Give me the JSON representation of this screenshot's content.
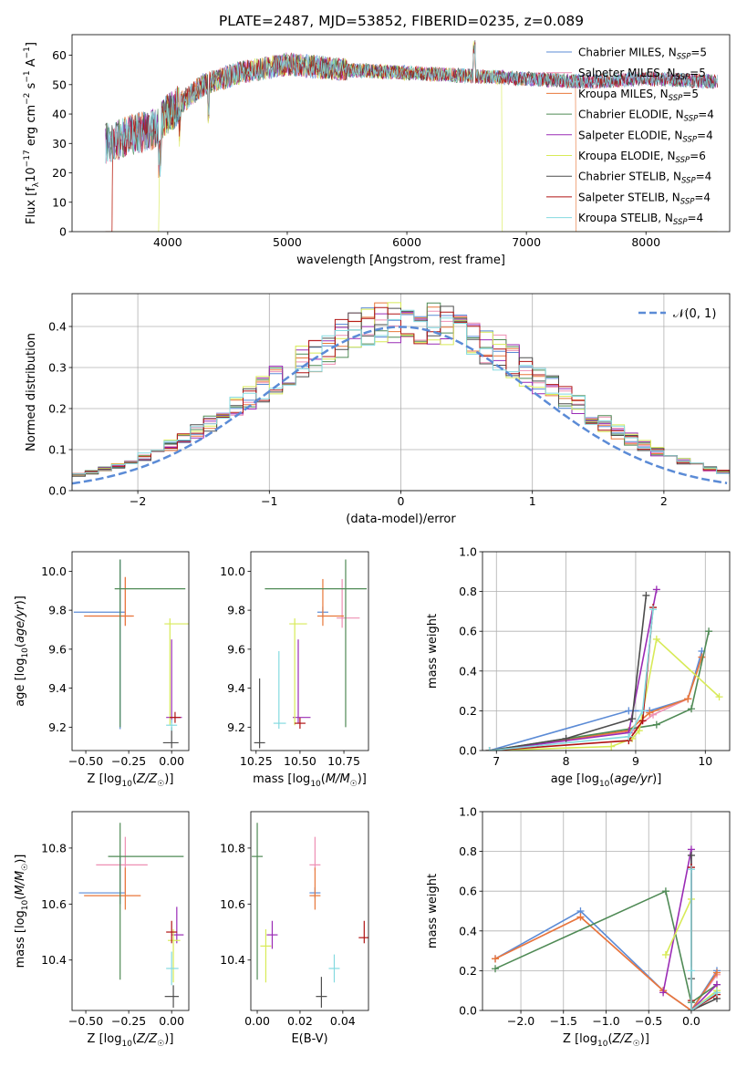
{
  "figure": {
    "title": "PLATE=2487, MJD=53852, FIBERID=0235, z=0.089"
  },
  "legend_items": [
    {
      "name": "Chabrier MILES, N_SSP=5",
      "color": "#5b8bd6"
    },
    {
      "name": "Salpeter MILES, N_SSP=5",
      "color": "#ee8fb3"
    },
    {
      "name": "Kroupa MILES, N_SSP=5",
      "color": "#e8773a"
    },
    {
      "name": "Chabrier ELODIE, N_SSP=4",
      "color": "#4f8a55"
    },
    {
      "name": "Salpeter ELODIE, N_SSP=4",
      "color": "#9a2bb5"
    },
    {
      "name": "Kroupa ELODIE, N_SSP=6",
      "color": "#d8ea57"
    },
    {
      "name": "Chabrier STELIB, N_SSP=4",
      "color": "#4d4d4d"
    },
    {
      "name": "Salpeter STELIB, N_SSP=4",
      "color": "#b01313"
    },
    {
      "name": "Kroupa STELIB, N_SSP=4",
      "color": "#84dae0"
    }
  ],
  "chart_data": [
    {
      "id": "spectrum",
      "type": "line",
      "xlabel": "wavelength [Angstrom, rest frame]",
      "ylabel": "Flux [f_λ 10^-17 erg cm^-2 s^-1 A^-1]",
      "xlim": [
        3200,
        8700
      ],
      "ylim": [
        0,
        67
      ],
      "xticks": [
        4000,
        5000,
        6000,
        7000,
        8000
      ],
      "yticks": [
        0,
        10,
        20,
        30,
        40,
        50,
        60
      ],
      "grid": false,
      "legend": "top-right",
      "continuum": {
        "x": [
          3500,
          3700,
          3900,
          4000,
          4300,
          4600,
          5000,
          5500,
          6000,
          6500,
          7000,
          7500,
          8000,
          8600
        ],
        "y": [
          30,
          33,
          35,
          40,
          50,
          54,
          57,
          55,
          54,
          53,
          52,
          51,
          52,
          51
        ]
      },
      "cutoffs": [
        {
          "series": "Kroupa MILES, N_SSP=5",
          "x": 3530
        },
        {
          "series": "Salpeter STELIB, N_SSP=4",
          "x": 3530
        },
        {
          "series": "Kroupa ELODIE, N_SSP=6",
          "x": 3920
        },
        {
          "series": "Kroupa ELODIE, N_SSP=6",
          "x": 6800
        },
        {
          "series": "Kroupa MILES, N_SSP=5",
          "x": 7420
        }
      ]
    },
    {
      "id": "residual-hist",
      "type": "histogram",
      "xlabel": "(data-model)/error",
      "ylabel": "Normed distribution",
      "xlim": [
        -2.5,
        2.5
      ],
      "ylim": [
        0,
        0.48
      ],
      "xticks": [
        -2,
        -1,
        0,
        1,
        2
      ],
      "yticks": [
        0.0,
        0.1,
        0.2,
        0.3,
        0.4
      ],
      "grid": true,
      "legend": "top-right",
      "reference_curve": {
        "label": "N(0,1)",
        "mean": 0,
        "sigma": 1
      }
    },
    {
      "id": "age-vs-Z",
      "type": "scatter",
      "xlabel": "Z [log10(Z/Z☉)]",
      "ylabel": "age [log10(age/yr)]",
      "xlim": [
        -0.58,
        0.1
      ],
      "ylim": [
        9.08,
        10.1
      ],
      "xticks": [
        -0.5,
        -0.25,
        0.0
      ],
      "xtick_labels": [
        "−0.50",
        "−0.25",
        "0.00"
      ],
      "yticks": [
        9.2,
        9.4,
        9.6,
        9.8,
        10.0
      ],
      "grid": false,
      "points": [
        {
          "series": "Chabrier MILES, N_SSP=5",
          "x": -0.3,
          "y": 9.79,
          "xerr": [
            0.27,
            0.02
          ],
          "yerr": [
            0.6,
            0.27
          ]
        },
        {
          "series": "Salpeter MILES, N_SSP=5",
          "x": -0.27,
          "y": 9.77,
          "xerr": [
            0.21,
            0.04
          ],
          "yerr": [
            0.05,
            0.2
          ]
        },
        {
          "series": "Kroupa MILES, N_SSP=5",
          "x": -0.27,
          "y": 9.77,
          "xerr": [
            0.24,
            0.05
          ],
          "yerr": [
            0.05,
            0.2
          ]
        },
        {
          "series": "Chabrier ELODIE, N_SSP=4",
          "x": -0.3,
          "y": 9.91,
          "xerr": [
            0.0,
            0.38
          ],
          "yerr": [
            0.71,
            0.15
          ]
        },
        {
          "series": "Salpeter ELODIE, N_SSP=4",
          "x": 0.0,
          "y": 9.25,
          "xerr": [
            0.0,
            0.06
          ],
          "yerr": [
            0.0,
            0.4
          ]
        },
        {
          "series": "Kroupa ELODIE, N_SSP=6",
          "x": -0.01,
          "y": 9.73,
          "xerr": [
            0.0,
            0.14
          ],
          "yerr": [
            0.52,
            0.0
          ]
        },
        {
          "series": "Chabrier STELIB, N_SSP=4",
          "x": 0.0,
          "y": 9.12,
          "xerr": [
            0.05,
            0.04
          ],
          "yerr": [
            0.0,
            0.08
          ]
        },
        {
          "series": "Salpeter STELIB, N_SSP=4",
          "x": 0.02,
          "y": 9.25,
          "xerr": [
            0.0,
            0.0
          ],
          "yerr": [
            0.0,
            0.0
          ]
        },
        {
          "series": "Kroupa STELIB, N_SSP=4",
          "x": 0.0,
          "y": 9.21,
          "xerr": [
            0.03,
            0.03
          ],
          "yerr": [
            0.0,
            0.0
          ]
        }
      ]
    },
    {
      "id": "age-vs-mass",
      "type": "scatter",
      "xlabel": "mass [log10(M/M☉)]",
      "ylabel": "",
      "xlim": [
        10.22,
        10.89
      ],
      "ylim": [
        9.08,
        10.1
      ],
      "xticks": [
        10.25,
        10.5,
        10.75
      ],
      "xtick_labels": [
        "10.25",
        "10.50",
        "10.75"
      ],
      "yticks": [
        9.2,
        9.4,
        9.6,
        9.8,
        10.0
      ],
      "grid": false,
      "points": [
        {
          "series": "Chabrier MILES, N_SSP=5",
          "x": 10.63,
          "y": 9.79,
          "xerr": [
            0.0,
            0.0
          ],
          "yerr": [
            0.0,
            0.0
          ]
        },
        {
          "series": "Salpeter MILES, N_SSP=5",
          "x": 10.74,
          "y": 9.76,
          "xerr": [
            0.01,
            0.1
          ],
          "yerr": [
            0.05,
            0.2
          ]
        },
        {
          "series": "Kroupa MILES, N_SSP=5",
          "x": 10.63,
          "y": 9.77,
          "xerr": [
            0.0,
            0.12
          ],
          "yerr": [
            0.05,
            0.19
          ]
        },
        {
          "series": "Chabrier ELODIE, N_SSP=4",
          "x": 10.76,
          "y": 9.91,
          "xerr": [
            0.46,
            0.12
          ],
          "yerr": [
            0.71,
            0.15
          ]
        },
        {
          "series": "Salpeter ELODIE, N_SSP=4",
          "x": 10.49,
          "y": 9.25,
          "xerr": [
            0.0,
            0.07
          ],
          "yerr": [
            0.0,
            0.4
          ]
        },
        {
          "series": "Kroupa ELODIE, N_SSP=6",
          "x": 10.47,
          "y": 9.73,
          "xerr": [
            0.0,
            0.07
          ],
          "yerr": [
            0.52,
            0.0
          ]
        },
        {
          "series": "Chabrier STELIB, N_SSP=4",
          "x": 10.27,
          "y": 9.12,
          "xerr": [
            0.0,
            0.03
          ],
          "yerr": [
            0.0,
            0.33
          ]
        },
        {
          "series": "Salpeter STELIB, N_SSP=4",
          "x": 10.5,
          "y": 9.22,
          "xerr": [
            0.0,
            0.0
          ],
          "yerr": [
            0.0,
            0.0
          ]
        },
        {
          "series": "Kroupa STELIB, N_SSP=4",
          "x": 10.38,
          "y": 9.22,
          "xerr": [
            0.0,
            0.04
          ],
          "yerr": [
            0.0,
            0.37
          ]
        }
      ]
    },
    {
      "id": "weight-vs-age",
      "type": "line",
      "xlabel": "age [log10(age/yr)]",
      "ylabel": "mass weight",
      "xlim": [
        6.8,
        10.35
      ],
      "ylim": [
        0.0,
        1.0
      ],
      "xticks": [
        7,
        8,
        9,
        10
      ],
      "yticks": [
        0.0,
        0.2,
        0.4,
        0.6,
        0.8,
        1.0
      ],
      "grid": true,
      "series": [
        {
          "name": "Chabrier MILES, N_SSP=5",
          "x": [
            6.9,
            8.9,
            9.2,
            9.75,
            9.95
          ],
          "y": [
            0.0,
            0.2,
            0.2,
            0.26,
            0.5
          ]
        },
        {
          "name": "Salpeter MILES, N_SSP=5",
          "x": [
            6.9,
            8.95,
            9.25,
            9.75,
            9.95
          ],
          "y": [
            0.0,
            0.1,
            0.18,
            0.26,
            0.47
          ]
        },
        {
          "name": "Kroupa MILES, N_SSP=5",
          "x": [
            6.9,
            8.9,
            9.2,
            9.75,
            9.95
          ],
          "y": [
            0.0,
            0.1,
            0.19,
            0.26,
            0.47
          ]
        },
        {
          "name": "Chabrier ELODIE, N_SSP=4",
          "x": [
            6.9,
            9.3,
            9.8,
            10.05
          ],
          "y": [
            0.0,
            0.13,
            0.21,
            0.6
          ]
        },
        {
          "name": "Salpeter ELODIE, N_SSP=4",
          "x": [
            6.9,
            8.9,
            9.3
          ],
          "y": [
            0.0,
            0.09,
            0.81
          ]
        },
        {
          "name": "Kroupa ELODIE, N_SSP=6",
          "x": [
            6.9,
            8.65,
            8.95,
            9.05,
            9.3,
            10.2
          ],
          "y": [
            0.0,
            0.02,
            0.06,
            0.1,
            0.56,
            0.27
          ]
        },
        {
          "name": "Chabrier STELIB, N_SSP=4",
          "x": [
            6.9,
            8.0,
            8.95,
            9.15
          ],
          "y": [
            0.0,
            0.06,
            0.16,
            0.78
          ]
        },
        {
          "name": "Salpeter STELIB, N_SSP=4",
          "x": [
            6.9,
            8.9,
            9.1,
            9.25
          ],
          "y": [
            0.0,
            0.05,
            0.15,
            0.72
          ]
        },
        {
          "name": "Kroupa STELIB, N_SSP=4",
          "x": [
            6.9,
            8.9,
            9.1,
            9.25
          ],
          "y": [
            0.0,
            0.07,
            0.2,
            0.71
          ]
        }
      ]
    },
    {
      "id": "mass-vs-Z",
      "type": "scatter",
      "xlabel": "Z [log10(Z/Z☉)]",
      "ylabel": "mass [log10(M/M☉)]",
      "xlim": [
        -0.58,
        0.1
      ],
      "ylim": [
        10.22,
        10.93
      ],
      "xticks": [
        -0.5,
        -0.25,
        0.0
      ],
      "xtick_labels": [
        "−0.50",
        "−0.25",
        "0.00"
      ],
      "yticks": [
        10.4,
        10.6,
        10.8
      ],
      "grid": false,
      "points": [
        {
          "series": "Chabrier MILES, N_SSP=5",
          "x": -0.3,
          "y": 10.64,
          "xerr": [
            0.24,
            0.02
          ],
          "yerr": [
            0.04,
            0.13
          ]
        },
        {
          "series": "Salpeter MILES, N_SSP=5",
          "x": -0.27,
          "y": 10.74,
          "xerr": [
            0.17,
            0.13
          ],
          "yerr": [
            0.1,
            0.1
          ]
        },
        {
          "series": "Kroupa MILES, N_SSP=5",
          "x": -0.27,
          "y": 10.63,
          "xerr": [
            0.24,
            0.09
          ],
          "yerr": [
            0.05,
            0.1
          ]
        },
        {
          "series": "Chabrier ELODIE, N_SSP=4",
          "x": -0.3,
          "y": 10.77,
          "xerr": [
            0.07,
            0.37
          ],
          "yerr": [
            0.44,
            0.12
          ]
        },
        {
          "series": "Salpeter ELODIE, N_SSP=4",
          "x": 0.03,
          "y": 10.49,
          "xerr": [
            0.03,
            0.04
          ],
          "yerr": [
            0.03,
            0.1
          ]
        },
        {
          "series": "Kroupa ELODIE, N_SSP=6",
          "x": 0.01,
          "y": 10.47,
          "xerr": [
            0.02,
            0.04
          ],
          "yerr": [
            0.15,
            0.04
          ]
        },
        {
          "series": "Chabrier STELIB, N_SSP=4",
          "x": 0.01,
          "y": 10.27,
          "xerr": [
            0.05,
            0.03
          ],
          "yerr": [
            0.04,
            0.04
          ]
        },
        {
          "series": "Salpeter STELIB, N_SSP=4",
          "x": 0.0,
          "y": 10.5,
          "xerr": [
            0.02,
            0.02
          ],
          "yerr": [
            0.04,
            0.04
          ]
        },
        {
          "series": "Kroupa STELIB, N_SSP=4",
          "x": 0.0,
          "y": 10.37,
          "xerr": [
            0.03,
            0.04
          ],
          "yerr": [
            0.06,
            0.06
          ]
        }
      ]
    },
    {
      "id": "mass-vs-ebv",
      "type": "scatter",
      "xlabel": "E(B-V)",
      "ylabel": "",
      "xlim": [
        -0.003,
        0.052
      ],
      "ylim": [
        10.22,
        10.93
      ],
      "xticks": [
        0.0,
        0.02,
        0.04
      ],
      "xtick_labels": [
        "0.00",
        "0.02",
        "0.04"
      ],
      "yticks": [
        10.4,
        10.6,
        10.8
      ],
      "grid": false,
      "points": [
        {
          "series": "Chabrier MILES, N_SSP=5",
          "x": 0.027,
          "y": 10.64,
          "xerr": [
            0.0,
            0.0
          ],
          "yerr": [
            0.0,
            0.0
          ]
        },
        {
          "series": "Salpeter MILES, N_SSP=5",
          "x": 0.027,
          "y": 10.74,
          "xerr": [
            0.0,
            0.0
          ],
          "yerr": [
            0.0,
            0.1
          ]
        },
        {
          "series": "Kroupa MILES, N_SSP=5",
          "x": 0.027,
          "y": 10.63,
          "xerr": [
            0.0,
            0.0
          ],
          "yerr": [
            0.05,
            0.1
          ]
        },
        {
          "series": "Chabrier ELODIE, N_SSP=4",
          "x": 0.0,
          "y": 10.77,
          "xerr": [
            0.0,
            0.0
          ],
          "yerr": [
            0.44,
            0.12
          ]
        },
        {
          "series": "Salpeter ELODIE, N_SSP=4",
          "x": 0.007,
          "y": 10.49,
          "xerr": [
            0.0,
            0.0
          ],
          "yerr": [
            0.05,
            0.05
          ]
        },
        {
          "series": "Kroupa ELODIE, N_SSP=6",
          "x": 0.004,
          "y": 10.45,
          "xerr": [
            0.0,
            0.0
          ],
          "yerr": [
            0.13,
            0.06
          ]
        },
        {
          "series": "Chabrier STELIB, N_SSP=4",
          "x": 0.03,
          "y": 10.27,
          "xerr": [
            0.0,
            0.0
          ],
          "yerr": [
            0.04,
            0.07
          ]
        },
        {
          "series": "Salpeter STELIB, N_SSP=4",
          "x": 0.05,
          "y": 10.48,
          "xerr": [
            0.0,
            0.0
          ],
          "yerr": [
            0.02,
            0.06
          ]
        },
        {
          "series": "Kroupa STELIB, N_SSP=4",
          "x": 0.036,
          "y": 10.37,
          "xerr": [
            0.0,
            0.0
          ],
          "yerr": [
            0.05,
            0.05
          ]
        }
      ]
    },
    {
      "id": "weight-vs-Z",
      "type": "line",
      "xlabel": "Z [log10(Z/Z☉)]",
      "ylabel": "mass weight",
      "xlim": [
        -2.45,
        0.45
      ],
      "ylim": [
        0.0,
        1.0
      ],
      "xticks": [
        -2.0,
        -1.5,
        -1.0,
        -0.5,
        0.0
      ],
      "xtick_labels": [
        "−2.0",
        "−1.5",
        "−1.0",
        "−0.5",
        "0.0"
      ],
      "yticks": [
        0.0,
        0.2,
        0.4,
        0.6,
        0.8,
        1.0
      ],
      "grid": true,
      "series": [
        {
          "name": "Chabrier MILES, N_SSP=5",
          "x": [
            -2.3,
            -1.3,
            -0.33,
            0.0,
            0.3
          ],
          "y": [
            0.26,
            0.5,
            0.1,
            0.0,
            0.2
          ]
        },
        {
          "name": "Salpeter MILES, N_SSP=5",
          "x": [
            -2.3,
            -1.3,
            -0.33,
            0.0,
            0.3
          ],
          "y": [
            0.26,
            0.47,
            0.1,
            0.0,
            0.18
          ]
        },
        {
          "name": "Kroupa MILES, N_SSP=5",
          "x": [
            -2.3,
            -1.3,
            -0.33,
            0.0,
            0.3
          ],
          "y": [
            0.26,
            0.47,
            0.1,
            0.0,
            0.19
          ]
        },
        {
          "name": "Chabrier ELODIE, N_SSP=4",
          "x": [
            -2.3,
            -0.3,
            0.0,
            0.3
          ],
          "y": [
            0.21,
            0.6,
            0.04,
            0.13
          ]
        },
        {
          "name": "Salpeter ELODIE, N_SSP=4",
          "x": [
            -0.33,
            0.0,
            0.0,
            0.3
          ],
          "y": [
            0.09,
            0.81,
            0.0,
            0.13
          ]
        },
        {
          "name": "Kroupa ELODIE, N_SSP=6",
          "x": [
            -0.3,
            0.0,
            0.0,
            0.3
          ],
          "y": [
            0.28,
            0.56,
            0.0,
            0.1
          ]
        },
        {
          "name": "Chabrier STELIB, N_SSP=4",
          "x": [
            0.0,
            0.0,
            0.0,
            0.3
          ],
          "y": [
            0.16,
            0.78,
            0.0,
            0.06
          ]
        },
        {
          "name": "Salpeter STELIB, N_SSP=4",
          "x": [
            0.0,
            0.0,
            0.0,
            0.3
          ],
          "y": [
            0.05,
            0.72,
            0.0,
            0.08
          ]
        },
        {
          "name": "Kroupa STELIB, N_SSP=4",
          "x": [
            0.0,
            0.0,
            0.0,
            0.3
          ],
          "y": [
            0.2,
            0.71,
            0.0,
            0.09
          ]
        }
      ]
    }
  ]
}
